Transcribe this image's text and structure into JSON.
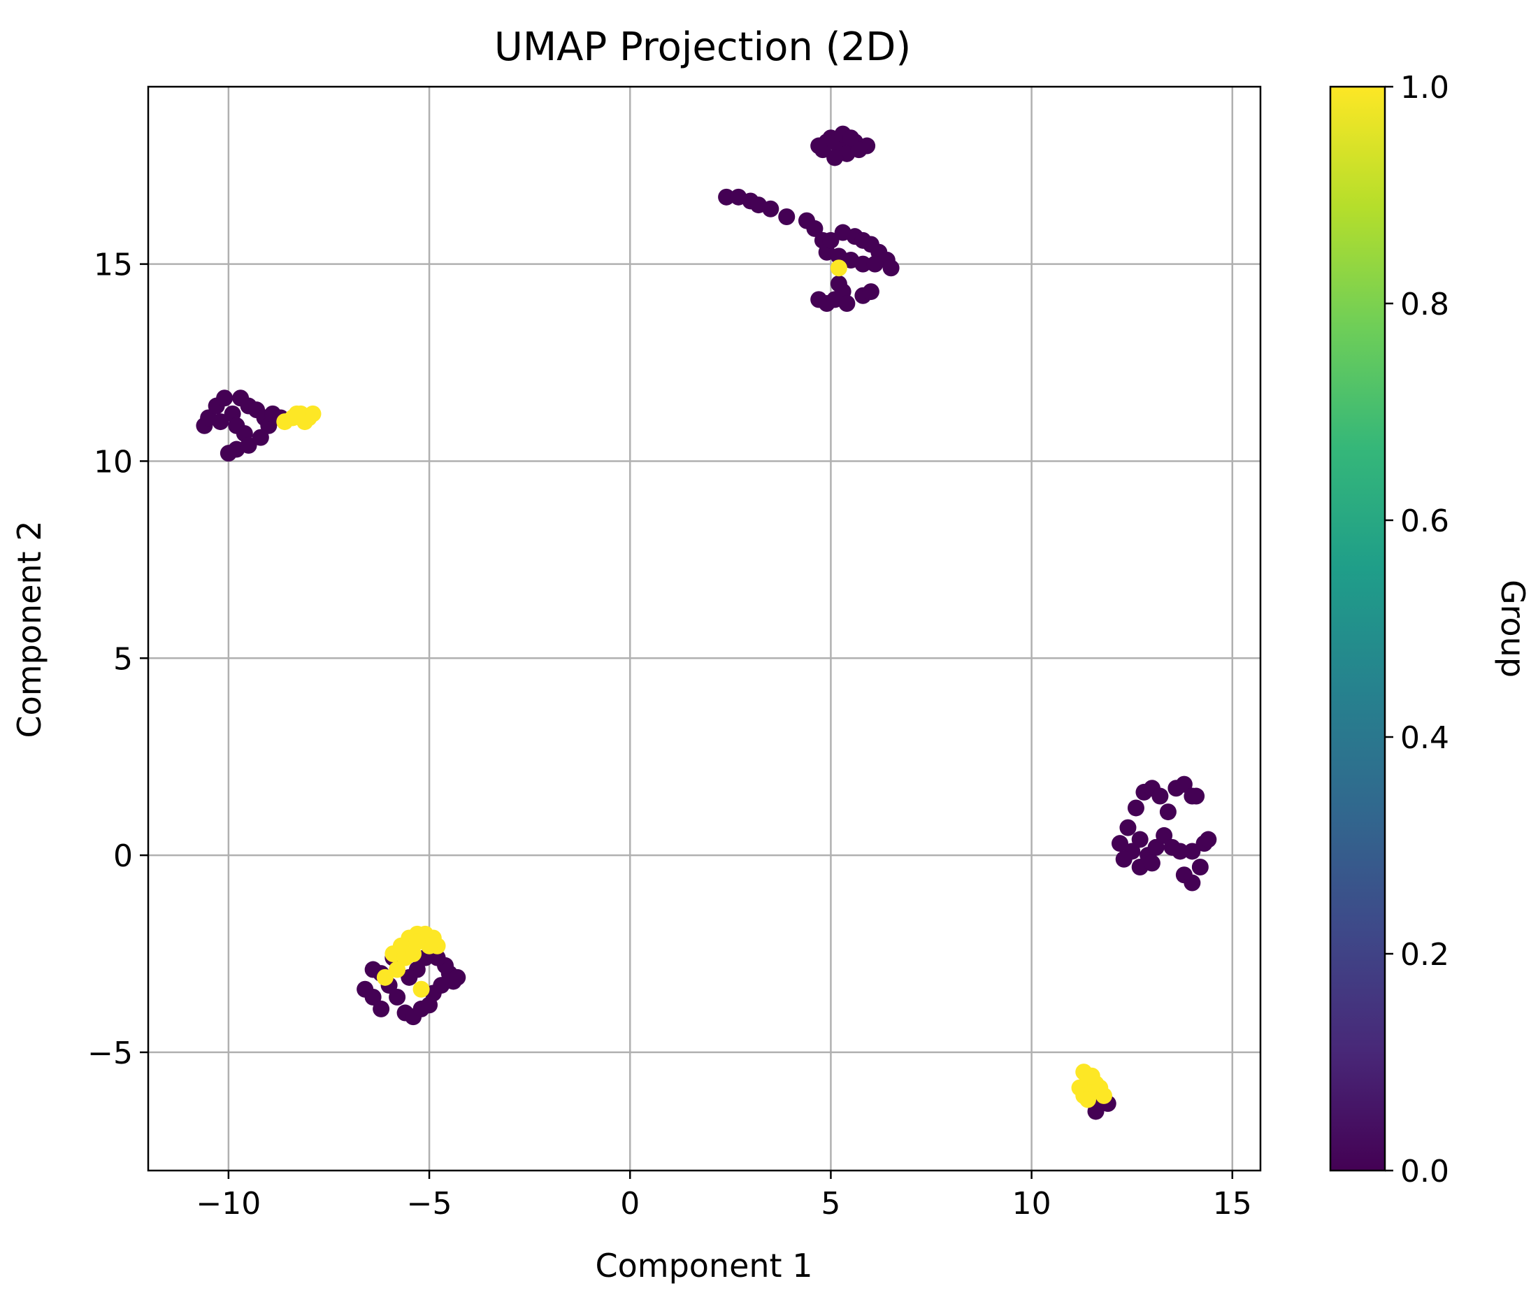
{
  "chart_data": {
    "type": "scatter",
    "title": "UMAP Projection (2D)",
    "xlabel": "Component 1",
    "ylabel": "Component 2",
    "xlim": [
      -12,
      15.7
    ],
    "ylim": [
      -8,
      19.5
    ],
    "xticks": [
      -10,
      -5,
      0,
      5,
      10,
      15
    ],
    "xtick_labels": [
      "−10",
      "−5",
      "0",
      "5",
      "10",
      "15"
    ],
    "yticks": [
      -5,
      0,
      5,
      10,
      15
    ],
    "ytick_labels": [
      "−5",
      "0",
      "5",
      "10",
      "15"
    ],
    "grid": true,
    "colorbar": {
      "label": "Group",
      "range": [
        0.0,
        1.0
      ],
      "ticks": [
        0.0,
        0.2,
        0.4,
        0.6,
        0.8,
        1.0
      ],
      "tick_labels": [
        "0.0",
        "0.2",
        "0.4",
        "0.6",
        "0.8",
        "1.0"
      ],
      "colormap": "viridis",
      "stops": [
        "#440154",
        "#482878",
        "#3e4989",
        "#31688e",
        "#26828e",
        "#1f9e89",
        "#35b779",
        "#6ece58",
        "#b5de2b",
        "#fde725"
      ]
    },
    "series": [
      {
        "name": "Group 0",
        "value": 0,
        "color": "#440154",
        "points": [
          [
            4.8,
            17.9
          ],
          [
            5.0,
            18.2
          ],
          [
            5.2,
            18.0
          ],
          [
            5.4,
            17.8
          ],
          [
            5.6,
            18.1
          ],
          [
            5.9,
            18.0
          ],
          [
            5.1,
            17.7
          ],
          [
            4.9,
            18.1
          ],
          [
            5.3,
            18.3
          ],
          [
            5.7,
            17.9
          ],
          [
            4.7,
            18.0
          ],
          [
            5.5,
            18.2
          ],
          [
            2.4,
            16.7
          ],
          [
            2.7,
            16.7
          ],
          [
            3.0,
            16.6
          ],
          [
            3.2,
            16.5
          ],
          [
            3.5,
            16.4
          ],
          [
            3.9,
            16.2
          ],
          [
            4.4,
            16.1
          ],
          [
            4.6,
            15.9
          ],
          [
            4.8,
            15.6
          ],
          [
            4.9,
            15.3
          ],
          [
            5.0,
            15.6
          ],
          [
            5.3,
            15.8
          ],
          [
            5.6,
            15.7
          ],
          [
            5.8,
            15.6
          ],
          [
            6.0,
            15.5
          ],
          [
            6.2,
            15.3
          ],
          [
            6.4,
            15.1
          ],
          [
            6.5,
            14.9
          ],
          [
            5.8,
            15.0
          ],
          [
            6.1,
            15.0
          ],
          [
            5.2,
            15.2
          ],
          [
            5.5,
            15.1
          ],
          [
            4.7,
            14.1
          ],
          [
            4.9,
            14.0
          ],
          [
            5.1,
            14.1
          ],
          [
            5.3,
            14.3
          ],
          [
            5.4,
            14.0
          ],
          [
            5.8,
            14.2
          ],
          [
            6.0,
            14.3
          ],
          [
            5.2,
            14.5
          ],
          [
            -10.6,
            10.9
          ],
          [
            -10.5,
            11.1
          ],
          [
            -10.3,
            11.4
          ],
          [
            -10.1,
            11.6
          ],
          [
            -9.9,
            11.2
          ],
          [
            -9.8,
            10.9
          ],
          [
            -9.7,
            11.6
          ],
          [
            -9.5,
            11.4
          ],
          [
            -9.3,
            11.3
          ],
          [
            -9.1,
            11.1
          ],
          [
            -9.0,
            10.9
          ],
          [
            -8.9,
            11.2
          ],
          [
            -8.7,
            11.1
          ],
          [
            -9.6,
            10.7
          ],
          [
            -9.8,
            10.3
          ],
          [
            -10.0,
            10.2
          ],
          [
            -9.5,
            10.4
          ],
          [
            -9.2,
            10.6
          ],
          [
            -10.2,
            11.0
          ],
          [
            -6.6,
            -3.4
          ],
          [
            -6.4,
            -3.6
          ],
          [
            -6.2,
            -3.9
          ],
          [
            -6.0,
            -3.3
          ],
          [
            -5.8,
            -3.6
          ],
          [
            -5.6,
            -4.0
          ],
          [
            -5.4,
            -4.1
          ],
          [
            -5.2,
            -3.9
          ],
          [
            -5.0,
            -3.8
          ],
          [
            -4.9,
            -3.5
          ],
          [
            -4.7,
            -3.3
          ],
          [
            -4.5,
            -3.0
          ],
          [
            -4.4,
            -3.2
          ],
          [
            -4.6,
            -2.8
          ],
          [
            -4.8,
            -2.6
          ],
          [
            -5.1,
            -2.6
          ],
          [
            -5.3,
            -2.9
          ],
          [
            -5.5,
            -3.1
          ],
          [
            -6.2,
            -3.0
          ],
          [
            -6.4,
            -2.9
          ],
          [
            -5.9,
            -2.6
          ],
          [
            -4.3,
            -3.1
          ],
          [
            12.2,
            0.3
          ],
          [
            12.4,
            0.7
          ],
          [
            12.6,
            1.2
          ],
          [
            12.8,
            1.6
          ],
          [
            13.0,
            1.7
          ],
          [
            13.2,
            1.5
          ],
          [
            13.4,
            1.1
          ],
          [
            13.6,
            1.7
          ],
          [
            13.8,
            1.8
          ],
          [
            14.0,
            1.5
          ],
          [
            14.1,
            1.5
          ],
          [
            12.5,
            0.1
          ],
          [
            12.7,
            0.4
          ],
          [
            12.9,
            0.0
          ],
          [
            13.1,
            0.2
          ],
          [
            13.3,
            0.5
          ],
          [
            13.5,
            0.2
          ],
          [
            13.7,
            0.1
          ],
          [
            14.0,
            0.1
          ],
          [
            14.3,
            0.3
          ],
          [
            14.4,
            0.4
          ],
          [
            12.7,
            -0.3
          ],
          [
            13.0,
            -0.2
          ],
          [
            13.8,
            -0.5
          ],
          [
            14.0,
            -0.7
          ],
          [
            14.2,
            -0.3
          ],
          [
            12.3,
            -0.1
          ],
          [
            11.7,
            -6.2
          ],
          [
            11.9,
            -6.3
          ],
          [
            11.6,
            -6.5
          ],
          [
            11.5,
            -6.0
          ]
        ]
      },
      {
        "name": "Group 1",
        "value": 1,
        "color": "#fde725",
        "points": [
          [
            5.2,
            14.9
          ],
          [
            -8.6,
            11.0
          ],
          [
            -8.4,
            11.1
          ],
          [
            -8.2,
            11.2
          ],
          [
            -8.0,
            11.1
          ],
          [
            -7.9,
            11.2
          ],
          [
            -8.1,
            11.0
          ],
          [
            -8.3,
            11.2
          ],
          [
            -5.9,
            -2.5
          ],
          [
            -5.7,
            -2.3
          ],
          [
            -5.5,
            -2.1
          ],
          [
            -5.3,
            -2.0
          ],
          [
            -5.1,
            -2.0
          ],
          [
            -4.9,
            -2.1
          ],
          [
            -4.8,
            -2.3
          ],
          [
            -5.6,
            -2.6
          ],
          [
            -5.4,
            -2.5
          ],
          [
            -5.8,
            -2.9
          ],
          [
            -6.1,
            -3.1
          ],
          [
            -5.2,
            -3.4
          ],
          [
            -5.0,
            -2.3
          ],
          [
            -5.3,
            -2.2
          ],
          [
            11.3,
            -5.5
          ],
          [
            11.4,
            -5.7
          ],
          [
            11.2,
            -5.9
          ],
          [
            11.3,
            -6.1
          ],
          [
            11.5,
            -6.0
          ],
          [
            11.6,
            -5.8
          ],
          [
            11.7,
            -5.9
          ],
          [
            11.5,
            -5.6
          ],
          [
            11.8,
            -6.1
          ],
          [
            11.4,
            -6.2
          ]
        ]
      }
    ]
  }
}
